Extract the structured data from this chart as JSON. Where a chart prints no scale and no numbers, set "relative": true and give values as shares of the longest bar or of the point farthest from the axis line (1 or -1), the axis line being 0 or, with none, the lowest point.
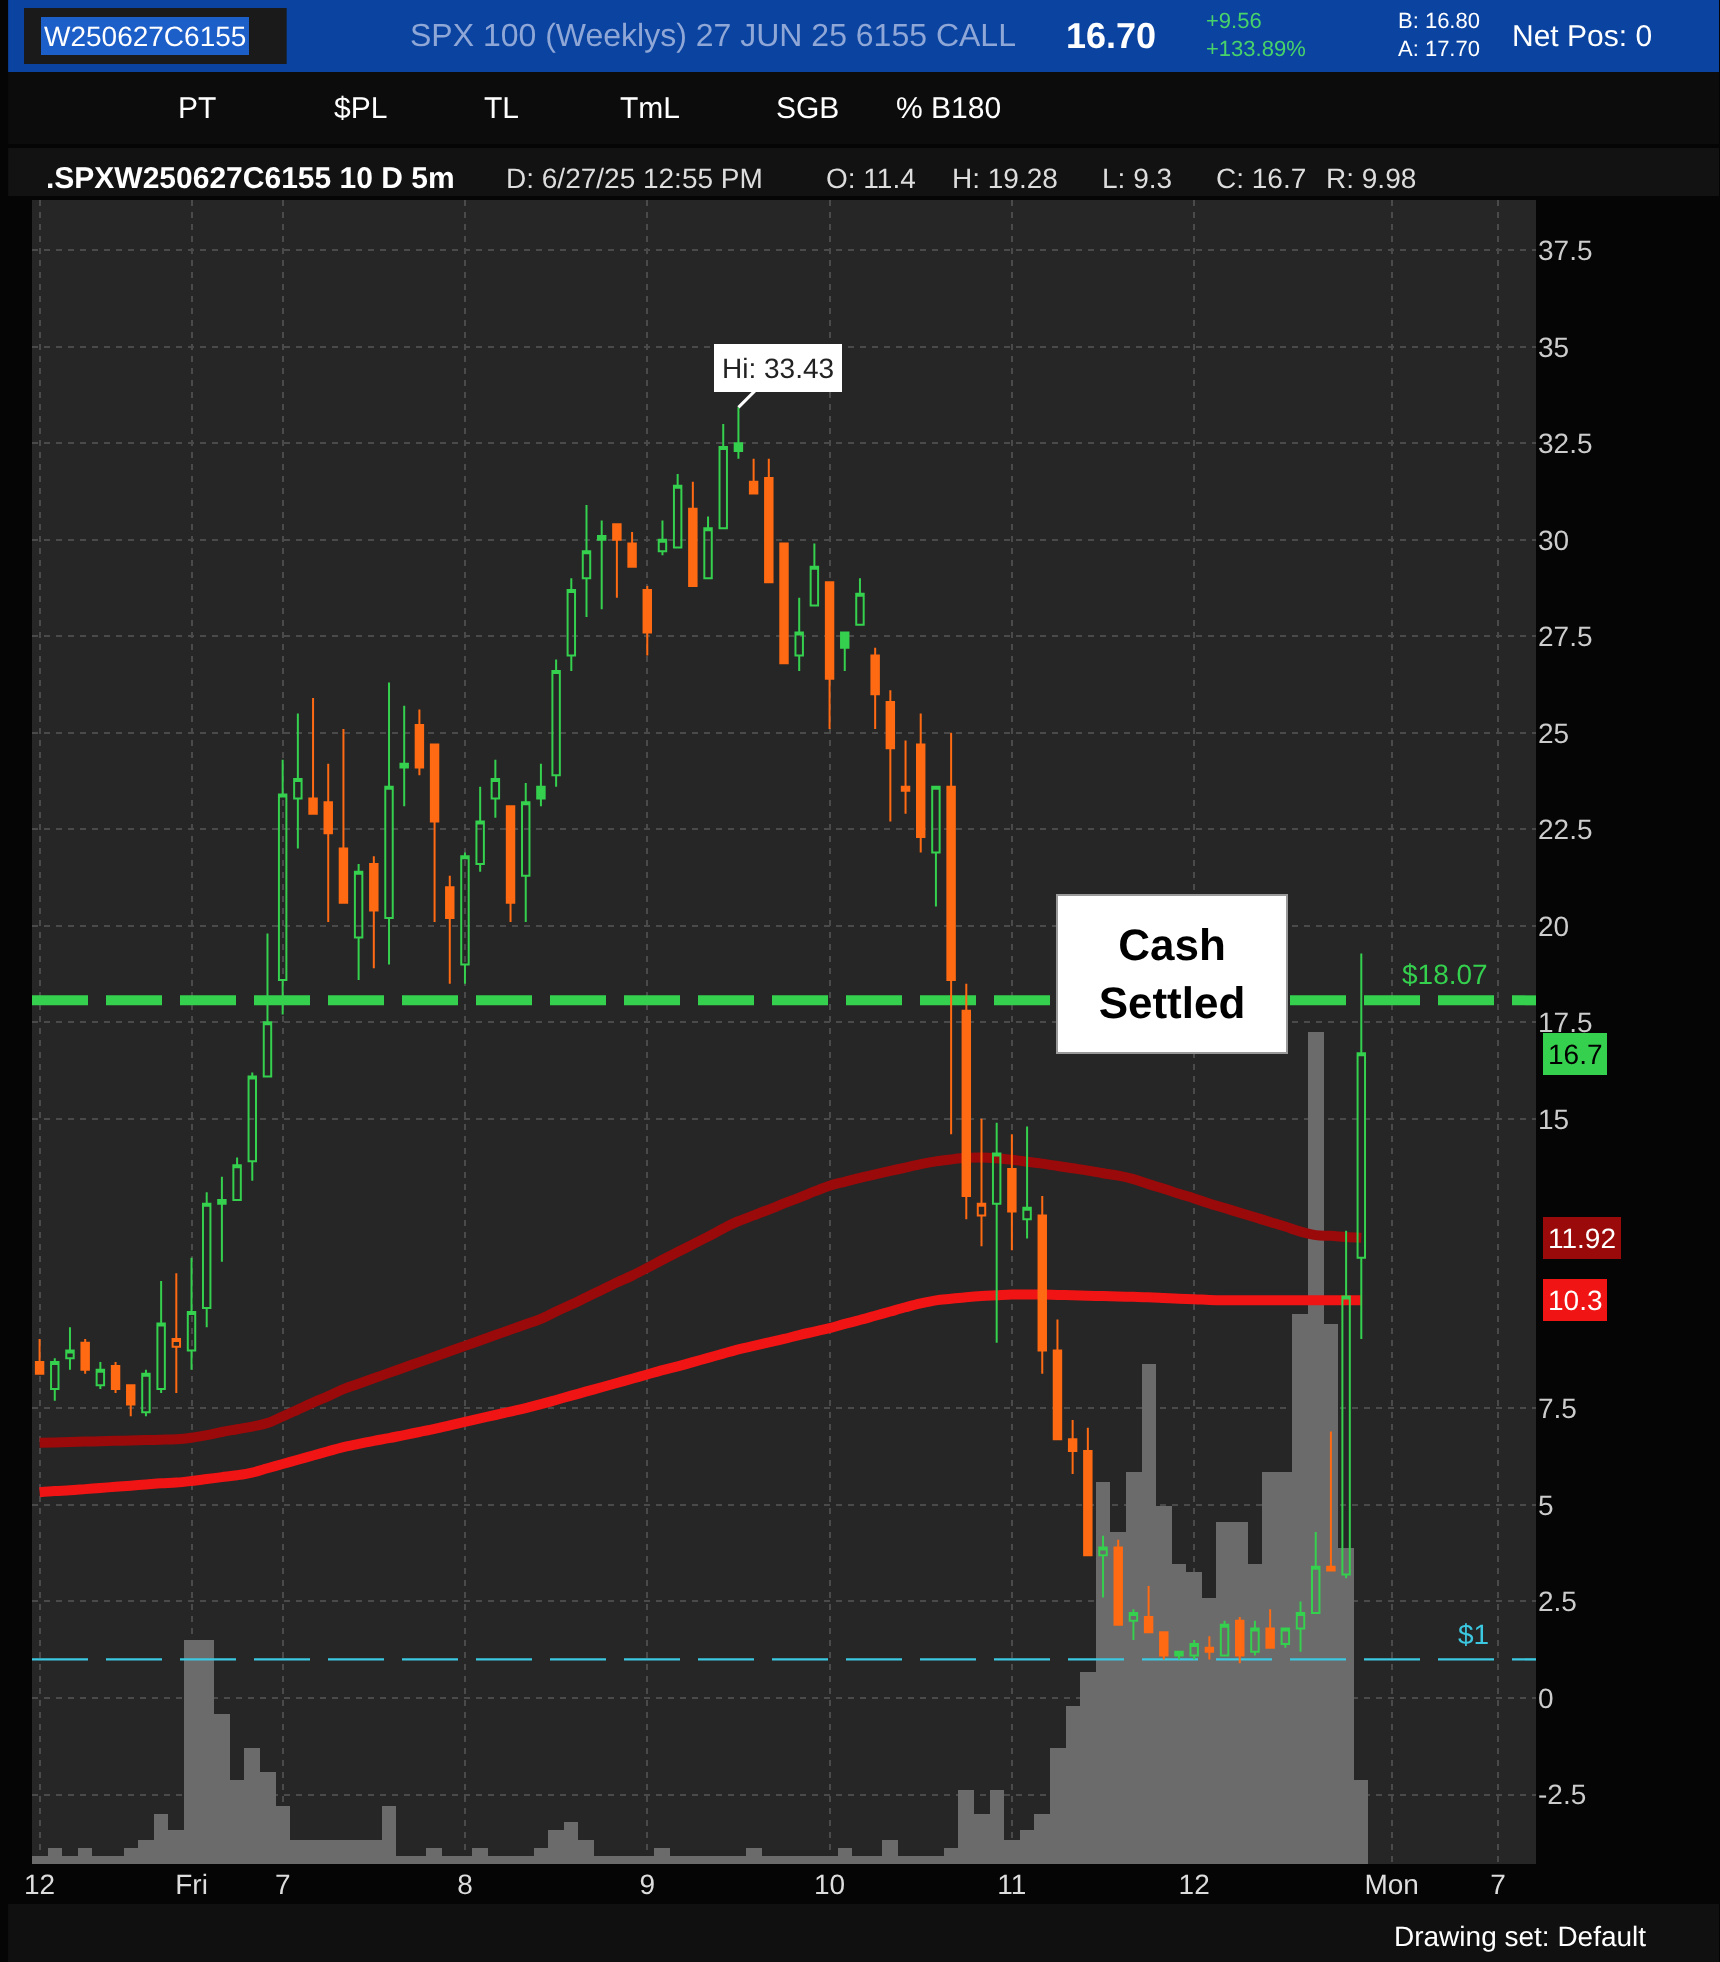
{
  "chart_data": [
    {
      "type": "candlestick",
      "title": ".SPXW250627C6155 10 D 5m",
      "subtitle": "SPX 100 (Weeklys) 27 JUN 25 6155 CALL",
      "categories": [
        "12",
        null,
        null,
        null,
        null,
        null,
        null,
        null,
        null,
        null,
        "Fri",
        null,
        null,
        null,
        null,
        null,
        "7",
        null,
        null,
        null,
        null,
        null,
        null,
        null,
        null,
        null,
        null,
        null,
        "8",
        null,
        null,
        null,
        null,
        null,
        null,
        null,
        null,
        null,
        null,
        null,
        "9",
        null,
        null,
        null,
        null,
        null,
        null,
        null,
        null,
        null,
        null,
        null,
        "10",
        null,
        null,
        null,
        null,
        null,
        null,
        null,
        null,
        null,
        null,
        null,
        "11",
        null,
        null,
        null,
        null,
        null,
        null,
        null,
        null,
        null,
        null,
        null,
        "12",
        null,
        null,
        null,
        null,
        null,
        null,
        null,
        null,
        null,
        null,
        null,
        null,
        "Mon",
        null,
        null,
        null,
        null,
        null,
        null,
        "7",
        null,
        null
      ],
      "ohlc": [
        [
          8.7,
          9.3,
          8.4,
          8.4
        ],
        [
          8.0,
          8.8,
          7.7,
          8.7
        ],
        [
          8.8,
          9.6,
          8.5,
          9.0
        ],
        [
          9.2,
          9.3,
          8.4,
          8.5
        ],
        [
          8.1,
          8.7,
          8.0,
          8.5
        ],
        [
          8.6,
          8.7,
          7.9,
          8.0
        ],
        [
          8.1,
          8.1,
          7.3,
          7.6
        ],
        [
          7.4,
          8.5,
          7.3,
          8.4
        ],
        [
          8.0,
          10.8,
          7.9,
          9.7
        ],
        [
          9.1,
          11.0,
          7.9,
          9.3
        ],
        [
          9.0,
          11.4,
          8.5,
          10.0
        ],
        [
          10.1,
          13.1,
          9.6,
          12.8
        ],
        [
          12.8,
          13.5,
          11.3,
          12.9
        ],
        [
          12.9,
          14.0,
          12.9,
          13.8
        ],
        [
          13.9,
          16.2,
          13.4,
          16.1
        ],
        [
          16.1,
          19.8,
          16.1,
          17.5
        ],
        [
          18.6,
          24.3,
          17.7,
          23.4
        ],
        [
          23.3,
          25.5,
          22.0,
          23.8
        ],
        [
          23.3,
          25.9,
          22.9,
          22.9
        ],
        [
          23.2,
          24.2,
          20.1,
          22.4
        ],
        [
          22.0,
          25.1,
          20.6,
          20.6
        ],
        [
          19.7,
          21.6,
          18.6,
          21.4
        ],
        [
          21.6,
          21.8,
          18.9,
          20.4
        ],
        [
          20.2,
          26.3,
          19.0,
          23.6
        ],
        [
          24.1,
          25.7,
          23.1,
          24.2
        ],
        [
          25.2,
          25.6,
          23.9,
          24.1
        ],
        [
          24.7,
          24.7,
          20.1,
          22.7
        ],
        [
          21.0,
          21.3,
          18.5,
          20.2
        ],
        [
          19.0,
          21.9,
          18.5,
          21.8
        ],
        [
          21.6,
          23.6,
          21.4,
          22.7
        ],
        [
          23.3,
          24.3,
          22.8,
          23.8
        ],
        [
          23.1,
          23.1,
          20.1,
          20.6
        ],
        [
          21.3,
          23.7,
          20.1,
          23.2
        ],
        [
          23.6,
          24.2,
          23.1,
          23.3
        ],
        [
          23.9,
          26.9,
          23.6,
          26.6
        ],
        [
          27.0,
          29.0,
          26.6,
          28.7
        ],
        [
          29.0,
          30.9,
          28.0,
          29.7
        ],
        [
          30.0,
          30.5,
          28.2,
          30.1
        ],
        [
          30.4,
          30.4,
          28.5,
          30.0
        ],
        [
          29.9,
          30.2,
          29.3,
          29.3
        ],
        [
          28.7,
          28.8,
          27.0,
          27.6
        ],
        [
          29.7,
          30.5,
          29.6,
          30.0
        ],
        [
          29.8,
          31.7,
          29.8,
          31.4
        ],
        [
          30.8,
          31.5,
          28.8,
          28.8
        ],
        [
          29.0,
          30.6,
          29.0,
          30.3
        ],
        [
          30.3,
          33.0,
          30.3,
          32.4
        ],
        [
          32.5,
          33.43,
          32.1,
          32.3
        ],
        [
          31.5,
          32.1,
          31.2,
          31.2
        ],
        [
          31.6,
          32.1,
          28.9,
          28.9
        ],
        [
          29.9,
          29.9,
          26.8,
          26.8
        ],
        [
          27.0,
          28.5,
          26.6,
          27.6
        ],
        [
          28.3,
          29.9,
          28.3,
          29.3
        ],
        [
          28.9,
          28.9,
          25.1,
          26.4
        ],
        [
          27.6,
          27.6,
          26.6,
          27.2
        ],
        [
          27.8,
          29.0,
          27.8,
          28.6
        ],
        [
          27.0,
          27.2,
          25.1,
          26.0
        ],
        [
          25.8,
          26.1,
          22.7,
          24.6
        ],
        [
          23.6,
          24.8,
          22.9,
          23.5
        ],
        [
          24.7,
          25.5,
          21.9,
          22.3
        ],
        [
          21.9,
          23.6,
          20.5,
          23.6
        ],
        [
          23.6,
          25.0,
          14.6,
          18.6
        ],
        [
          17.8,
          18.5,
          12.4,
          13.0
        ],
        [
          12.5,
          15.0,
          11.7,
          12.8
        ],
        [
          12.8,
          14.9,
          9.2,
          14.1
        ],
        [
          13.7,
          14.6,
          11.6,
          12.6
        ],
        [
          12.4,
          14.8,
          11.9,
          12.7
        ],
        [
          12.5,
          13.0,
          8.4,
          9.0
        ],
        [
          9.0,
          9.8,
          6.7,
          6.7
        ],
        [
          6.7,
          7.2,
          5.8,
          6.4
        ],
        [
          6.4,
          7.0,
          3.7,
          3.7
        ],
        [
          3.7,
          4.2,
          2.6,
          3.9
        ],
        [
          3.9,
          4.1,
          1.9,
          1.9
        ],
        [
          2.0,
          2.3,
          1.5,
          2.2
        ],
        [
          2.1,
          2.9,
          1.7,
          1.7
        ],
        [
          1.7,
          1.7,
          1.0,
          1.1
        ],
        [
          1.1,
          1.2,
          1.0,
          1.2
        ],
        [
          1.1,
          1.5,
          1.0,
          1.4
        ],
        [
          1.3,
          1.6,
          1.0,
          1.2
        ],
        [
          1.1,
          2.0,
          1.1,
          1.9
        ],
        [
          2.0,
          2.1,
          0.9,
          1.1
        ],
        [
          1.2,
          2.0,
          1.1,
          1.8
        ],
        [
          1.8,
          2.3,
          1.3,
          1.3
        ],
        [
          1.4,
          1.8,
          1.3,
          1.8
        ],
        [
          1.8,
          2.5,
          1.2,
          2.2
        ],
        [
          2.2,
          4.3,
          2.2,
          3.4
        ],
        [
          3.4,
          6.9,
          3.3,
          3.3
        ],
        [
          3.2,
          12.1,
          3.1,
          10.4
        ],
        [
          11.4,
          19.28,
          9.3,
          16.7
        ],
        null,
        null,
        null,
        null,
        null,
        null,
        null,
        null,
        null,
        null,
        null
      ],
      "colors": [
        "#ff6a13",
        "#35d04e",
        "#35d04e",
        "#ff6a13",
        "#35d04e",
        "#ff6a13",
        "#ff6a13",
        "#35d04e",
        "#35d04e",
        "#ff6a13",
        "#35d04e",
        "#35d04e",
        "#35d04e",
        "#35d04e",
        "#35d04e",
        "#35d04e",
        "#35d04e",
        "#35d04e",
        "#ff6a13",
        "#ff6a13",
        "#ff6a13",
        "#35d04e",
        "#ff6a13",
        "#35d04e",
        "#35d04e",
        "#ff6a13",
        "#ff6a13",
        "#ff6a13",
        "#35d04e",
        "#35d04e",
        "#35d04e",
        "#ff6a13",
        "#35d04e",
        "#35d04e",
        "#35d04e",
        "#35d04e",
        "#35d04e",
        "#35d04e",
        "#ff6a13",
        "#ff6a13",
        "#ff6a13",
        "#35d04e",
        "#35d04e",
        "#ff6a13",
        "#35d04e",
        "#35d04e",
        "#35d04e",
        "#ff6a13",
        "#ff6a13",
        "#ff6a13",
        "#35d04e",
        "#35d04e",
        "#ff6a13",
        "#35d04e",
        "#35d04e",
        "#ff6a13",
        "#ff6a13",
        "#ff6a13",
        "#ff6a13",
        "#35d04e",
        "#ff6a13",
        "#ff6a13",
        "#ff6a13",
        "#35d04e",
        "#ff6a13",
        "#35d04e",
        "#ff6a13",
        "#ff6a13",
        "#ff6a13",
        "#ff6a13",
        "#35d04e",
        "#ff6a13",
        "#35d04e",
        "#ff6a13",
        "#ff6a13",
        "#35d04e",
        "#35d04e",
        "#ff6a13",
        "#35d04e",
        "#ff6a13",
        "#35d04e",
        "#ff6a13",
        "#35d04e",
        "#35d04e",
        "#35d04e",
        "#ff6a13",
        "#35d04e",
        "#35d04e",
        null,
        null,
        null,
        null,
        null,
        null,
        null,
        null,
        null,
        null,
        null
      ],
      "series": [
        {
          "type": "line",
          "color": "#9b0a0a",
          "values": [
            6.61,
            6.62,
            6.63,
            6.64,
            6.65,
            6.66,
            6.67,
            6.68,
            6.69,
            6.7,
            6.74,
            6.81,
            6.89,
            6.96,
            7.03,
            7.12,
            7.29,
            7.47,
            7.65,
            7.82,
            8.0,
            8.14,
            8.28,
            8.42,
            8.56,
            8.7,
            8.84,
            8.98,
            9.12,
            9.26,
            9.4,
            9.54,
            9.68,
            9.82,
            10.01,
            10.19,
            10.38,
            10.57,
            10.76,
            10.94,
            11.14,
            11.35,
            11.55,
            11.75,
            11.95,
            12.16,
            12.35,
            12.5,
            12.65,
            12.81,
            12.96,
            13.12,
            13.27,
            13.37,
            13.47,
            13.56,
            13.65,
            13.74,
            13.83,
            13.9,
            13.95,
            13.99,
            14.0,
            13.98,
            13.94,
            13.89,
            13.84,
            13.78,
            13.72,
            13.66,
            13.59,
            13.53,
            13.44,
            13.31,
            13.19,
            13.06,
            12.94,
            12.81,
            12.69,
            12.57,
            12.45,
            12.33,
            12.21,
            12.08,
            11.99,
            11.97,
            11.94,
            11.92,
            null,
            null,
            null,
            null,
            null,
            null,
            null,
            null,
            null,
            null,
            null
          ]
        },
        {
          "type": "line",
          "color": "#f01414",
          "values": [
            5.33,
            5.36,
            5.38,
            5.41,
            5.44,
            5.47,
            5.5,
            5.53,
            5.56,
            5.58,
            5.62,
            5.67,
            5.72,
            5.77,
            5.84,
            5.95,
            6.06,
            6.17,
            6.28,
            6.39,
            6.5,
            6.58,
            6.66,
            6.73,
            6.81,
            6.89,
            6.97,
            7.06,
            7.15,
            7.24,
            7.33,
            7.42,
            7.51,
            7.61,
            7.72,
            7.83,
            7.94,
            8.05,
            8.16,
            8.27,
            8.38,
            8.49,
            8.59,
            8.7,
            8.81,
            8.92,
            9.03,
            9.12,
            9.21,
            9.3,
            9.4,
            9.49,
            9.58,
            9.69,
            9.79,
            9.9,
            10.01,
            10.12,
            10.22,
            10.3,
            10.34,
            10.38,
            10.41,
            10.43,
            10.45,
            10.45,
            10.45,
            10.44,
            10.43,
            10.42,
            10.41,
            10.4,
            10.39,
            10.38,
            10.36,
            10.34,
            10.33,
            10.31,
            10.3,
            10.3,
            10.3,
            10.3,
            10.3,
            10.3,
            10.3,
            10.3,
            10.3,
            10.3,
            null,
            null,
            null,
            null,
            null,
            null,
            null,
            null,
            null,
            null,
            null
          ]
        }
      ],
      "ylim": [
        -4.3,
        38.8
      ],
      "yticks": [
        -2.5,
        0,
        2.5,
        5,
        7.5,
        15,
        17.5,
        20,
        22.5,
        25,
        27.5,
        30,
        32.5,
        35,
        37.5
      ],
      "grid": true,
      "ref_lines": [
        {
          "axis": "y",
          "value": 18.07,
          "label": "$18.07",
          "color": "#35d04e",
          "line_style": "dashed"
        },
        {
          "axis": "y",
          "value": 1,
          "label": "$1",
          "color": "#3cc8e0",
          "line_style": "dashed"
        }
      ],
      "annotations": [
        "W250627C6155",
        "16.70",
        "+9.56",
        "+133.89%",
        "B: 16.80",
        "A: 17.70",
        "Net Pos: 0",
        "PT",
        "$PL",
        "TL",
        "TmL",
        "SGB",
        "% B180",
        "D: 6/27/25 12:55 PM",
        "O: 11.4",
        "H: 19.28",
        "L: 9.3",
        "C: 16.7",
        "R: 9.98",
        "Cash\nSettled",
        "Drawing set: Default",
        "16.7",
        "11.92",
        "10.3",
        "Hi: 33.43"
      ]
    },
    {
      "type": "bar",
      "relative": true,
      "color": "#6b6b6b",
      "categories": [
        null,
        null,
        null,
        null,
        null,
        null,
        null,
        null,
        null,
        null,
        null,
        null,
        null,
        null,
        null,
        null,
        null,
        null,
        null,
        null,
        null,
        null,
        null,
        null,
        null,
        null,
        null,
        null,
        null,
        null,
        null,
        null,
        null,
        null,
        null,
        null,
        null,
        null,
        null,
        null,
        null,
        null,
        null,
        null,
        null,
        null,
        null,
        null,
        null,
        null,
        null,
        null,
        null,
        null,
        null,
        null,
        null,
        null,
        null,
        null,
        null,
        null,
        null,
        null,
        null,
        null,
        null,
        null,
        null,
        null,
        null,
        null,
        null,
        null,
        null,
        null,
        null,
        null,
        null,
        null,
        null,
        null,
        null,
        null,
        null,
        null,
        null,
        null,
        null,
        null,
        null,
        null,
        null,
        null,
        null,
        null,
        null,
        null,
        null
      ],
      "values": [
        0.01,
        0.02,
        0.01,
        0.02,
        0.01,
        0.01,
        0.02,
        0.03,
        0.06,
        0.04,
        0.27,
        0.27,
        0.18,
        0.1,
        0.14,
        0.11,
        0.07,
        0.03,
        0.03,
        0.03,
        0.03,
        0.03,
        0.03,
        0.07,
        0.01,
        0.01,
        0.02,
        0.01,
        0.01,
        0.02,
        0.01,
        0.01,
        0.01,
        0.02,
        0.04,
        0.05,
        0.03,
        0.01,
        0.01,
        0.01,
        0.01,
        0.02,
        0.01,
        0.01,
        0.01,
        0.01,
        0.01,
        0.02,
        0.01,
        0.01,
        0.01,
        0.01,
        0.01,
        0.02,
        0.01,
        0.01,
        0.03,
        0.01,
        0.01,
        0.01,
        0.02,
        0.09,
        0.06,
        0.09,
        0.03,
        0.04,
        0.06,
        0.14,
        0.19,
        0.23,
        0.46,
        0.4,
        0.47,
        0.6,
        0.43,
        0.36,
        0.35,
        0.32,
        0.41,
        0.41,
        0.36,
        0.47,
        0.47,
        0.66,
        1,
        0.65,
        0.38,
        0.1,
        null,
        null,
        null,
        null,
        null,
        null,
        null,
        null,
        null,
        null,
        null
      ]
    }
  ]
}
